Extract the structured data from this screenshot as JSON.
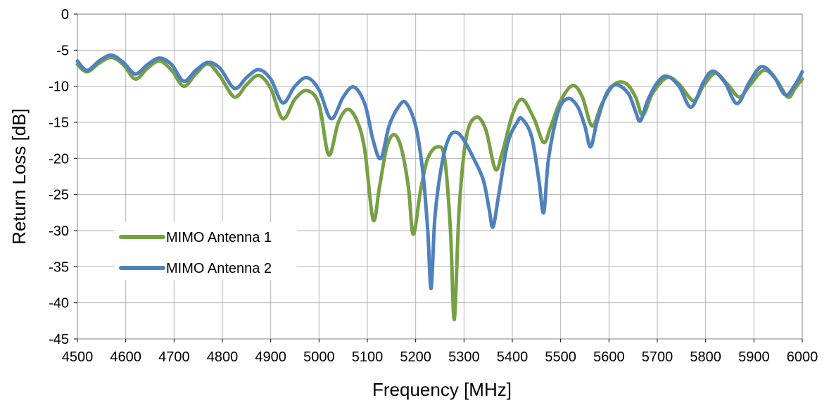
{
  "chart_data": {
    "type": "line",
    "title": "",
    "xlabel": "Frequency [MHz]",
    "ylabel": "Return  Loss [dB]",
    "xlim": [
      4500,
      6000
    ],
    "ylim": [
      -45,
      0
    ],
    "x_ticks": [
      "4500",
      "4600",
      "4700",
      "4800",
      "4900",
      "5000",
      "5100",
      "5200",
      "5300",
      "5400",
      "5500",
      "5600",
      "5700",
      "5800",
      "5900",
      "6000"
    ],
    "y_ticks": [
      "0",
      "-5",
      "-10",
      "-15",
      "-20",
      "-25",
      "-30",
      "-35",
      "-40",
      "-45"
    ],
    "grid": true,
    "legend_position": "lower-left",
    "series": [
      {
        "name": "MIMO Antenna 1",
        "color": "#77a045",
        "points": [
          [
            4500,
            -7.0
          ],
          [
            4520,
            -8.0
          ],
          [
            4545,
            -6.8
          ],
          [
            4570,
            -6.0
          ],
          [
            4595,
            -7.0
          ],
          [
            4620,
            -9.0
          ],
          [
            4645,
            -7.5
          ],
          [
            4670,
            -6.5
          ],
          [
            4695,
            -7.8
          ],
          [
            4720,
            -10.0
          ],
          [
            4745,
            -8.3
          ],
          [
            4770,
            -6.9
          ],
          [
            4795,
            -8.6
          ],
          [
            4825,
            -11.5
          ],
          [
            4850,
            -9.8
          ],
          [
            4875,
            -8.5
          ],
          [
            4900,
            -10.3
          ],
          [
            4925,
            -14.5
          ],
          [
            4950,
            -11.8
          ],
          [
            4975,
            -10.6
          ],
          [
            5000,
            -12.5
          ],
          [
            5020,
            -19.5
          ],
          [
            5040,
            -15.0
          ],
          [
            5060,
            -13.2
          ],
          [
            5080,
            -15.0
          ],
          [
            5095,
            -19.0
          ],
          [
            5112,
            -28.5
          ],
          [
            5125,
            -24.0
          ],
          [
            5140,
            -18.5
          ],
          [
            5155,
            -16.7
          ],
          [
            5170,
            -18.5
          ],
          [
            5185,
            -24.0
          ],
          [
            5195,
            -30.5
          ],
          [
            5210,
            -24.5
          ],
          [
            5225,
            -20.0
          ],
          [
            5245,
            -18.4
          ],
          [
            5260,
            -20.0
          ],
          [
            5272,
            -30.0
          ],
          [
            5280,
            -42.3
          ],
          [
            5290,
            -27.0
          ],
          [
            5305,
            -17.0
          ],
          [
            5325,
            -14.3
          ],
          [
            5345,
            -16.0
          ],
          [
            5365,
            -21.5
          ],
          [
            5380,
            -19.0
          ],
          [
            5400,
            -14.0
          ],
          [
            5420,
            -11.8
          ],
          [
            5445,
            -14.5
          ],
          [
            5465,
            -17.8
          ],
          [
            5480,
            -15.5
          ],
          [
            5500,
            -12.0
          ],
          [
            5525,
            -9.9
          ],
          [
            5545,
            -11.5
          ],
          [
            5565,
            -15.5
          ],
          [
            5585,
            -12.5
          ],
          [
            5610,
            -9.8
          ],
          [
            5635,
            -9.6
          ],
          [
            5655,
            -11.5
          ],
          [
            5670,
            -14.0
          ],
          [
            5690,
            -11.0
          ],
          [
            5720,
            -8.8
          ],
          [
            5745,
            -9.7
          ],
          [
            5775,
            -12.0
          ],
          [
            5795,
            -10.0
          ],
          [
            5820,
            -8.2
          ],
          [
            5845,
            -9.7
          ],
          [
            5870,
            -11.5
          ],
          [
            5890,
            -10.0
          ],
          [
            5920,
            -7.8
          ],
          [
            5945,
            -9.0
          ],
          [
            5970,
            -11.5
          ],
          [
            5985,
            -10.3
          ],
          [
            6000,
            -9.0
          ]
        ]
      },
      {
        "name": "MIMO Antenna 2",
        "color": "#4f81bd",
        "points": [
          [
            4500,
            -6.5
          ],
          [
            4520,
            -7.8
          ],
          [
            4545,
            -6.5
          ],
          [
            4570,
            -5.7
          ],
          [
            4595,
            -6.7
          ],
          [
            4620,
            -8.3
          ],
          [
            4645,
            -7.0
          ],
          [
            4670,
            -6.1
          ],
          [
            4695,
            -7.0
          ],
          [
            4720,
            -9.3
          ],
          [
            4745,
            -7.8
          ],
          [
            4770,
            -6.7
          ],
          [
            4795,
            -7.5
          ],
          [
            4825,
            -10.3
          ],
          [
            4850,
            -8.8
          ],
          [
            4875,
            -7.7
          ],
          [
            4900,
            -9.0
          ],
          [
            4925,
            -12.3
          ],
          [
            4950,
            -10.0
          ],
          [
            4975,
            -8.8
          ],
          [
            5000,
            -10.5
          ],
          [
            5025,
            -14.5
          ],
          [
            5050,
            -11.5
          ],
          [
            5072,
            -10.1
          ],
          [
            5095,
            -12.5
          ],
          [
            5112,
            -17.5
          ],
          [
            5128,
            -20.0
          ],
          [
            5145,
            -15.5
          ],
          [
            5165,
            -12.8
          ],
          [
            5180,
            -12.3
          ],
          [
            5200,
            -15.5
          ],
          [
            5215,
            -22.0
          ],
          [
            5225,
            -30.0
          ],
          [
            5232,
            -38.0
          ],
          [
            5240,
            -28.0
          ],
          [
            5255,
            -20.5
          ],
          [
            5270,
            -17.0
          ],
          [
            5285,
            -16.4
          ],
          [
            5300,
            -17.5
          ],
          [
            5320,
            -20.0
          ],
          [
            5340,
            -23.0
          ],
          [
            5352,
            -27.0
          ],
          [
            5360,
            -29.5
          ],
          [
            5372,
            -25.0
          ],
          [
            5390,
            -18.0
          ],
          [
            5410,
            -15.0
          ],
          [
            5420,
            -14.5
          ],
          [
            5440,
            -17.0
          ],
          [
            5455,
            -23.0
          ],
          [
            5465,
            -27.5
          ],
          [
            5475,
            -20.0
          ],
          [
            5495,
            -13.5
          ],
          [
            5515,
            -11.7
          ],
          [
            5535,
            -12.8
          ],
          [
            5550,
            -15.5
          ],
          [
            5562,
            -18.4
          ],
          [
            5575,
            -15.0
          ],
          [
            5595,
            -11.0
          ],
          [
            5615,
            -9.8
          ],
          [
            5640,
            -11.0
          ],
          [
            5655,
            -13.5
          ],
          [
            5665,
            -14.8
          ],
          [
            5680,
            -12.0
          ],
          [
            5700,
            -9.5
          ],
          [
            5720,
            -8.6
          ],
          [
            5745,
            -10.0
          ],
          [
            5770,
            -12.9
          ],
          [
            5795,
            -9.5
          ],
          [
            5815,
            -7.9
          ],
          [
            5840,
            -9.5
          ],
          [
            5865,
            -12.4
          ],
          [
            5890,
            -9.5
          ],
          [
            5915,
            -7.3
          ],
          [
            5940,
            -8.5
          ],
          [
            5965,
            -11.2
          ],
          [
            5985,
            -9.8
          ],
          [
            6000,
            -8.0
          ]
        ]
      }
    ]
  }
}
